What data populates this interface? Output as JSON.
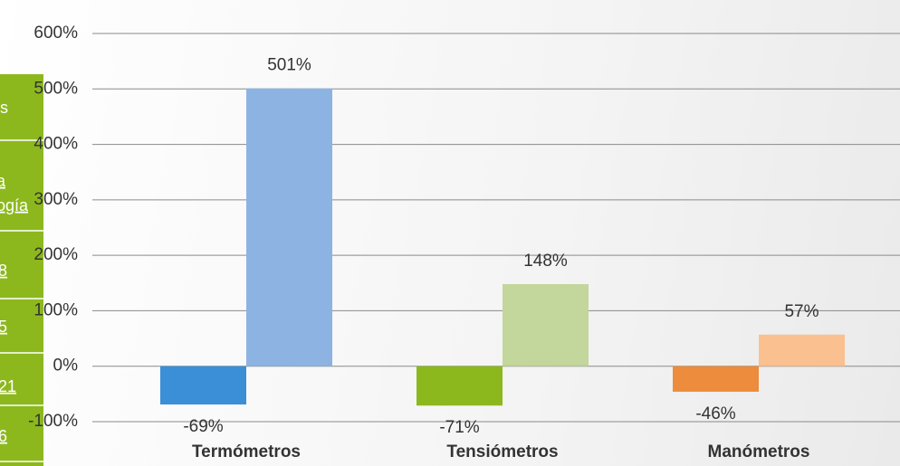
{
  "side_table": {
    "cells": [
      "s",
      "a",
      "ogía",
      "8",
      "5",
      "21",
      "6"
    ]
  },
  "chart_data": {
    "type": "bar",
    "categories": [
      "Termómetros",
      "Tensiómetros",
      "Manómetros"
    ],
    "series": [
      {
        "colors": [
          "#3a8fd6",
          "#8cb81e",
          "#ec8c3c"
        ],
        "values": [
          -69,
          -71,
          -46
        ],
        "value_labels": [
          "-69%",
          "-71%",
          "-46%"
        ]
      },
      {
        "colors": [
          "#8db3e2",
          "#c3d69b",
          "#fac090"
        ],
        "values": [
          501,
          148,
          57
        ],
        "value_labels": [
          "501%",
          "148%",
          "57%"
        ]
      }
    ],
    "ylim": [
      -100,
      600
    ],
    "yticks": [
      {
        "value": -100,
        "label": "-100%"
      },
      {
        "value": 0,
        "label": "0%"
      },
      {
        "value": 100,
        "label": "100%"
      },
      {
        "value": 200,
        "label": "200%"
      },
      {
        "value": 300,
        "label": "300%"
      },
      {
        "value": 400,
        "label": "400%"
      },
      {
        "value": 500,
        "label": "500%"
      },
      {
        "value": 600,
        "label": "600%"
      }
    ],
    "grid": true
  }
}
